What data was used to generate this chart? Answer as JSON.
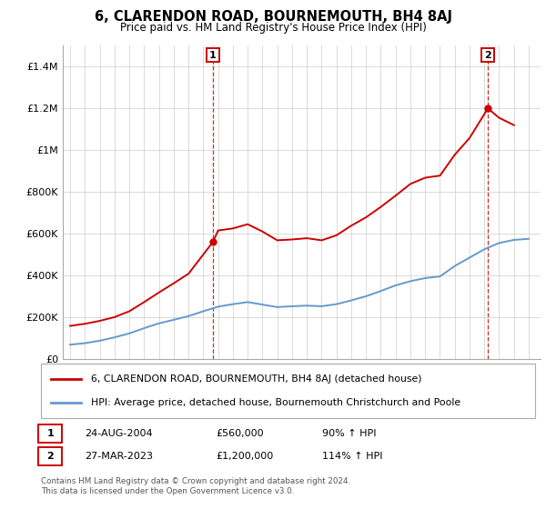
{
  "title": "6, CLARENDON ROAD, BOURNEMOUTH, BH4 8AJ",
  "subtitle": "Price paid vs. HM Land Registry's House Price Index (HPI)",
  "legend_label_red": "6, CLARENDON ROAD, BOURNEMOUTH, BH4 8AJ (detached house)",
  "legend_label_blue": "HPI: Average price, detached house, Bournemouth Christchurch and Poole",
  "footnote": "Contains HM Land Registry data © Crown copyright and database right 2024.\nThis data is licensed under the Open Government Licence v3.0.",
  "table_rows": [
    {
      "num": "1",
      "date": "24-AUG-2004",
      "price": "£560,000",
      "hpi": "90% ↑ HPI"
    },
    {
      "num": "2",
      "date": "27-MAR-2023",
      "price": "£1,200,000",
      "hpi": "114% ↑ HPI"
    }
  ],
  "sale1_x": 2004.65,
  "sale1_y": 560000,
  "sale2_x": 2023.24,
  "sale2_y": 1200000,
  "ylim": [
    0,
    1500000
  ],
  "xlim_left": 1994.5,
  "xlim_right": 2026.8,
  "yticks": [
    0,
    200000,
    400000,
    600000,
    800000,
    1000000,
    1200000,
    1400000
  ],
  "ytick_labels": [
    "£0",
    "£200K",
    "£400K",
    "£600K",
    "£800K",
    "£1M",
    "£1.2M",
    "£1.4M"
  ],
  "xticks": [
    1995,
    1996,
    1997,
    1998,
    1999,
    2000,
    2001,
    2002,
    2003,
    2004,
    2005,
    2006,
    2007,
    2008,
    2009,
    2010,
    2011,
    2012,
    2013,
    2014,
    2015,
    2016,
    2017,
    2018,
    2019,
    2020,
    2021,
    2022,
    2023,
    2024,
    2025,
    2026
  ],
  "red_color": "#cc0000",
  "blue_color": "#6699cc",
  "background_color": "#ffffff",
  "grid_color": "#cccccc",
  "hpi_x": [
    1995,
    1996,
    1997,
    1998,
    1999,
    2000,
    2001,
    2002,
    2003,
    2004,
    2005,
    2006,
    2007,
    2008,
    2009,
    2010,
    2011,
    2012,
    2013,
    2014,
    2015,
    2016,
    2017,
    2018,
    2019,
    2020,
    2021,
    2022,
    2023,
    2024,
    2025,
    2026
  ],
  "hpi_y": [
    68000,
    75000,
    87000,
    103000,
    122000,
    147000,
    170000,
    187000,
    205000,
    228000,
    250000,
    262000,
    272000,
    260000,
    248000,
    252000,
    255000,
    252000,
    262000,
    280000,
    300000,
    325000,
    352000,
    372000,
    387000,
    395000,
    445000,
    485000,
    525000,
    555000,
    570000,
    575000
  ],
  "red_x": [
    1995,
    1996,
    1997,
    1998,
    1999,
    2000,
    2001,
    2002,
    2003,
    2004.65,
    2005,
    2006,
    2007,
    2008,
    2009,
    2010,
    2011,
    2012,
    2013,
    2014,
    2015,
    2016,
    2017,
    2018,
    2019,
    2020,
    2021,
    2022,
    2023.24,
    2024,
    2025
  ],
  "red_y": [
    158000,
    168000,
    182000,
    200000,
    228000,
    272000,
    318000,
    362000,
    408000,
    560000,
    615000,
    625000,
    645000,
    610000,
    568000,
    572000,
    578000,
    568000,
    592000,
    638000,
    678000,
    728000,
    782000,
    838000,
    868000,
    878000,
    978000,
    1058000,
    1200000,
    1155000,
    1120000
  ]
}
